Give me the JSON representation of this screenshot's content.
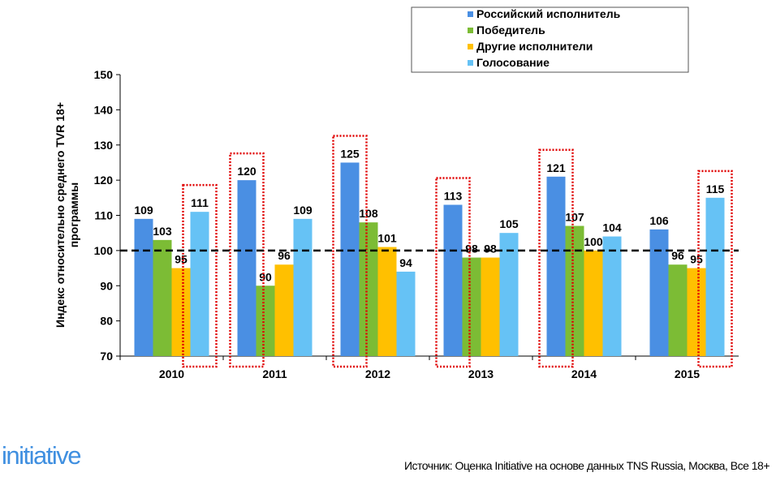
{
  "chart_data": {
    "type": "bar",
    "title": "",
    "ylabel": "Индекс относительно среднего TVR 18+ программы",
    "ylabel_lines": [
      "Индекс относительно среднего TVR 18+",
      "программы"
    ],
    "xlabel": "",
    "ylim": [
      70,
      150
    ],
    "yticks": [
      70,
      80,
      90,
      100,
      110,
      120,
      130,
      140,
      150
    ],
    "categories": [
      "2010",
      "2011",
      "2012",
      "2013",
      "2014",
      "2015"
    ],
    "series": [
      {
        "name": "Российский исполнитель",
        "color": "#4a8fe3",
        "values": [
          109,
          120,
          125,
          113,
          121,
          106
        ]
      },
      {
        "name": "Победитель",
        "color": "#7cbc35",
        "values": [
          103,
          90,
          108,
          98,
          107,
          96
        ]
      },
      {
        "name": "Другие исполнители",
        "color": "#ffc000",
        "values": [
          95,
          96,
          101,
          98,
          100,
          95
        ]
      },
      {
        "name": "Голосование",
        "color": "#66c2f5",
        "values": [
          111,
          109,
          94,
          105,
          104,
          115
        ]
      }
    ],
    "reference_line": {
      "value": 100,
      "style": "dashed",
      "color": "#000000"
    },
    "highlights": [
      {
        "category": "2010",
        "series": "Голосование"
      },
      {
        "category": "2011",
        "series": "Российский исполнитель"
      },
      {
        "category": "2012",
        "series": "Российский исполнитель"
      },
      {
        "category": "2013",
        "series": "Российский исполнитель"
      },
      {
        "category": "2014",
        "series": "Российский исполнитель"
      },
      {
        "category": "2015",
        "series": "Голосование"
      }
    ],
    "highlight_color": "#e00000",
    "legend_placement": "top-right",
    "grid": false
  },
  "footer": {
    "logo": "initiative",
    "source": "Источник: Оценка Initiative на основе данных TNS Russia, Москва, Все 18+"
  }
}
